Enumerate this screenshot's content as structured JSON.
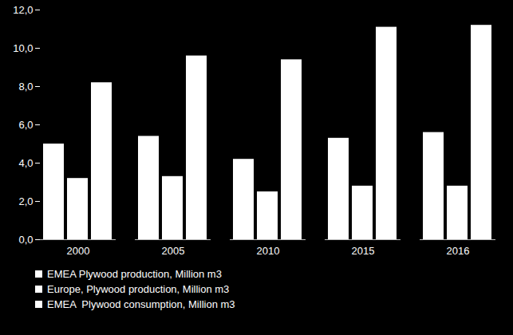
{
  "chart_data": {
    "type": "bar",
    "categories": [
      "2000",
      "2005",
      "2010",
      "2015",
      "2016"
    ],
    "series": [
      {
        "name": "EMEA Plywood production, Million m3",
        "color": "#ffffff",
        "values": [
          5.0,
          5.4,
          4.2,
          5.3,
          5.6
        ]
      },
      {
        "name": "Europe, Plywood production, Million m3",
        "color": "#ffffff",
        "values": [
          3.2,
          3.3,
          2.5,
          2.8,
          2.8
        ]
      },
      {
        "name": "EMEA  Plywood consumption, Million m3",
        "color": "#ffffff",
        "values": [
          8.2,
          9.6,
          9.4,
          11.1,
          11.2
        ]
      }
    ],
    "ylim": [
      0,
      12
    ],
    "yticks": [
      {
        "value": 0,
        "label": "0,0"
      },
      {
        "value": 2,
        "label": "2,0"
      },
      {
        "value": 4,
        "label": "4,0"
      },
      {
        "value": 6,
        "label": "6,0"
      },
      {
        "value": 8,
        "label": "8,0"
      },
      {
        "value": 10,
        "label": "10,0"
      },
      {
        "value": 12,
        "label": "12,0"
      }
    ],
    "grid": false,
    "legend": "bottom"
  }
}
